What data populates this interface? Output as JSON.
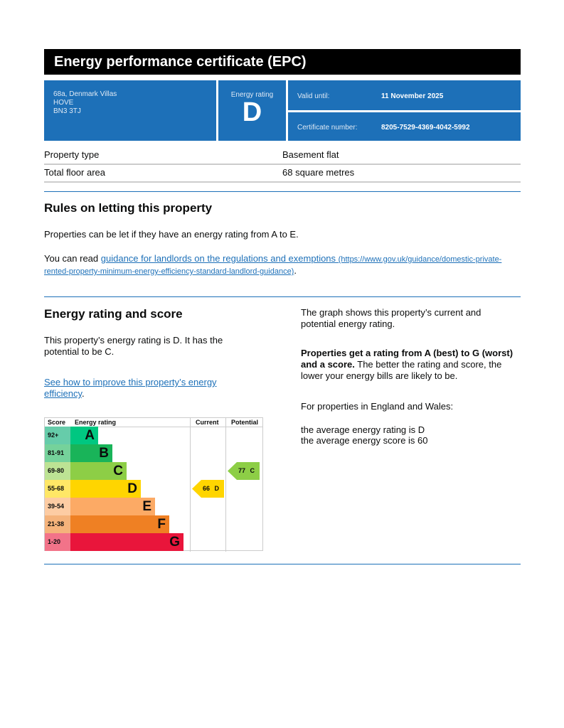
{
  "title": "Energy performance certificate (EPC)",
  "address": [
    "68a, Denmark Villas",
    "HOVE",
    "BN3 3TJ"
  ],
  "energy_rating": {
    "label": "Energy rating",
    "value": "D"
  },
  "valid_until": {
    "label": "Valid until:",
    "value": "11 November 2025"
  },
  "certificate": {
    "label": "Certificate number:",
    "value": "8205-7529-4369-4042-5992"
  },
  "details": [
    {
      "key": "Property type",
      "value": "Basement flat"
    },
    {
      "key": "Total floor area",
      "value": "68 square metres"
    }
  ],
  "rules": {
    "heading": "Rules on letting this property",
    "p1": "Properties can be let if they have an energy rating from A to E.",
    "p2_prefix": "You can read ",
    "link_text": "guidance for landlords on the regulations and exemptions",
    "link_url": "(https://www.gov.uk/guidance/domestic-private-rented-property-minimum-energy-efficiency-standard-landlord-guidance)",
    "p2_suffix": "."
  },
  "score_section": {
    "heading": "Energy rating and score",
    "p1": "This property’s energy rating is D. It has the potential to be C.",
    "link": "See how to improve this property’s energy efficiency",
    "link_suffix": ".",
    "right_p1": "The graph shows this property’s current and potential energy rating.",
    "right_bold": "Properties get a rating from A (best) to G (worst) and a score.",
    "right_p2": " The better the rating and score, the lower your energy bills are likely to be.",
    "right_p3": "For properties in England and Wales:",
    "right_p4": "the average energy rating is D",
    "right_p5": "the average energy score is 60"
  },
  "chart_data": {
    "type": "table",
    "headers": {
      "score": "Score",
      "rating": "Energy rating",
      "current": "Current",
      "potential": "Potential"
    },
    "bands": [
      {
        "score": "92+",
        "letter": "A",
        "color": "#00c781",
        "light": "#66ccaa"
      },
      {
        "score": "81-91",
        "letter": "B",
        "color": "#19b459",
        "light": "#75d29b"
      },
      {
        "score": "69-80",
        "letter": "C",
        "color": "#8dce46",
        "light": "#bde394"
      },
      {
        "score": "55-68",
        "letter": "D",
        "color": "#ffd500",
        "light": "#ffe766"
      },
      {
        "score": "39-54",
        "letter": "E",
        "color": "#fcaa65",
        "light": "#fdcca3"
      },
      {
        "score": "21-38",
        "letter": "F",
        "color": "#ef8023",
        "light": "#f5b37b"
      },
      {
        "score": "1-20",
        "letter": "G",
        "color": "#e9153b",
        "light": "#f27389"
      }
    ],
    "current": {
      "score": 66,
      "letter": "D",
      "label": "66 D"
    },
    "potential": {
      "score": 77,
      "letter": "C",
      "label": "77 C"
    }
  }
}
